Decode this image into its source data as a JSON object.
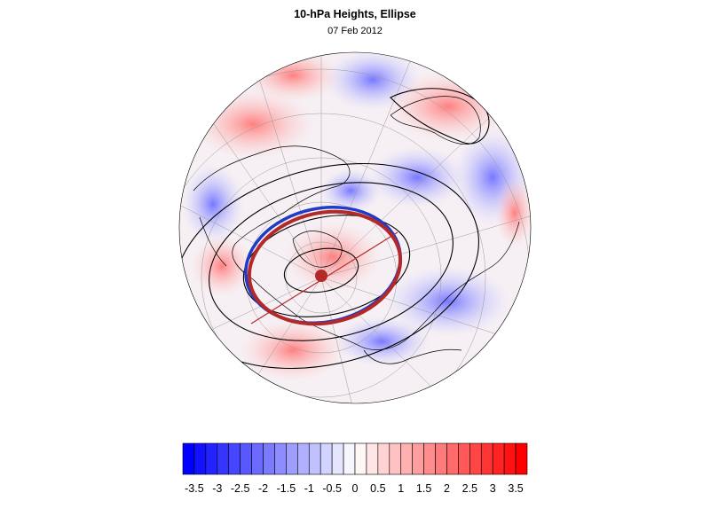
{
  "header": {
    "title": "10-hPa Heights, Ellipse",
    "date": "07 Feb 2012"
  },
  "colorbar": {
    "labels": [
      "-3.5",
      "-3",
      "-2.5",
      "-2",
      "-1.5",
      "-1",
      "-0.5",
      "0",
      "0.5",
      "1",
      "1.5",
      "2",
      "2.5",
      "3",
      "3.5"
    ],
    "min": -3.75,
    "max": 3.75,
    "step": 0.25,
    "negative_color": "#0000ff",
    "positive_color": "#ff0000",
    "zero_color": "#ffffff"
  },
  "map": {
    "projection": "orthographic-polar",
    "ellipse_colors": [
      "#1e3cc8",
      "#b42828"
    ],
    "contour_color": "#000000",
    "coastline_color": "#000000"
  }
}
